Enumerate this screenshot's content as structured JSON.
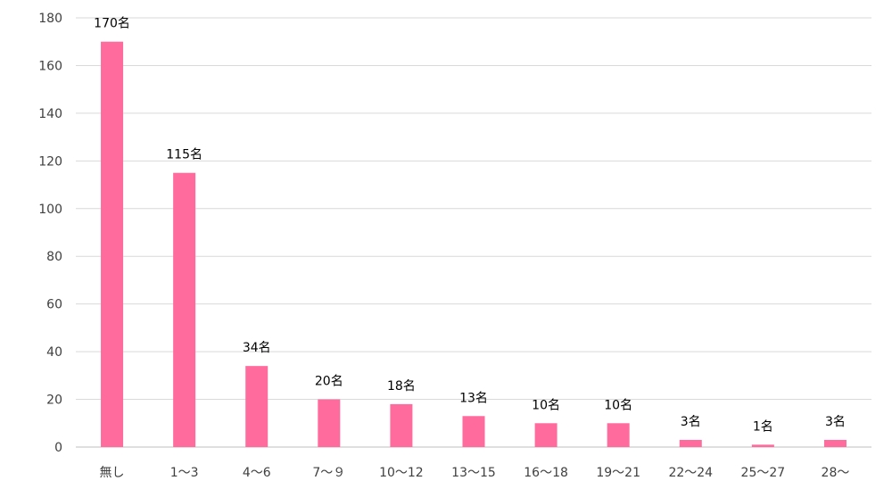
{
  "chart_data": {
    "type": "bar",
    "categories": [
      "無し",
      "1～3",
      "4～6",
      "7～９",
      "10～12",
      "13～15",
      "16～18",
      "19～21",
      "22～24",
      "25～27",
      "28～"
    ],
    "values": [
      170,
      115,
      34,
      20,
      18,
      13,
      10,
      10,
      3,
      1,
      3
    ],
    "data_labels": [
      "170名",
      "115名",
      "34名",
      "20名",
      "18名",
      "13名",
      "10名",
      "10名",
      "3名",
      "1名",
      "3名"
    ],
    "y_ticks": [
      "0",
      "20",
      "40",
      "60",
      "80",
      "100",
      "120",
      "140",
      "160",
      "180"
    ],
    "ylim": [
      0,
      180
    ],
    "grid": true,
    "legend": "none",
    "colors": {
      "bar": "#FF6B9D",
      "grid": "#D9D9D9",
      "text": "#404040"
    }
  }
}
